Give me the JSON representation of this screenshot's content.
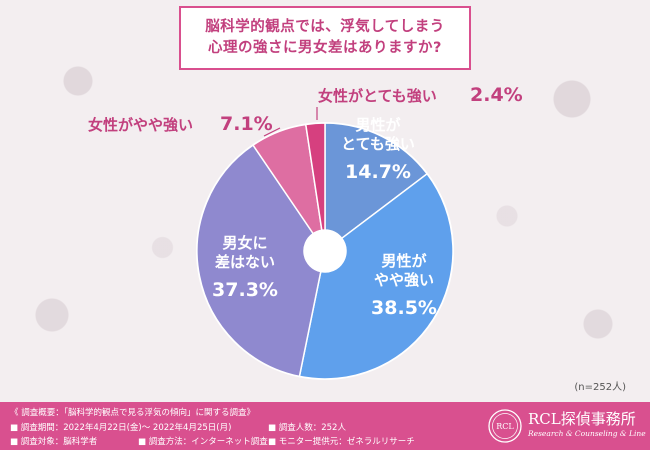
{
  "title": {
    "line1": "脳科学的観点では、浮気してしまう",
    "line2": "心理の強さに男女差はありますか?"
  },
  "chart_data": {
    "type": "pie",
    "donut": true,
    "slices": [
      {
        "label_lines": [
          "男性が",
          "とても強い"
        ],
        "value": 14.7,
        "value_text": "14.7%",
        "color": "#6b96d8",
        "label_placement": "inside"
      },
      {
        "label_lines": [
          "男性が",
          "やや強い"
        ],
        "value": 38.5,
        "value_text": "38.5%",
        "color": "#5fa0ec",
        "label_placement": "inside"
      },
      {
        "label_lines": [
          "男女に",
          "差はない"
        ],
        "value": 37.3,
        "value_text": "37.3%",
        "color": "#8f89cf",
        "label_placement": "inside"
      },
      {
        "label_lines": [
          "女性がやや強い"
        ],
        "value": 7.1,
        "value_text": "7.1%",
        "color": "#de6ea2",
        "label_placement": "outside"
      },
      {
        "label_lines": [
          "女性がとても強い"
        ],
        "value": 2.4,
        "value_text": "2.4%",
        "color": "#d6407f",
        "label_placement": "outside"
      }
    ]
  },
  "sample_note": "(n=252人)",
  "footer": {
    "heading": "《 調査概要：「脳科学的観点で見る浮気の傾向」に関する調査》",
    "period": "■ 調査期間：2022年4月22日(金)～ 2022年4月25日(月)",
    "count": "■ 調査人数：252人",
    "target": "■ 調査対象：脳科学者",
    "method": "■ 調査方法：インターネット調査",
    "provider": "■ モニター提供元：ゼネラルリサーチ"
  },
  "logo": {
    "name": "RCL探偵事務所",
    "sub": "Research & Counseling & Line",
    "mark_text": "RCL"
  },
  "colors": {
    "accent": "#d9508f",
    "title_text": "#c2407e"
  }
}
